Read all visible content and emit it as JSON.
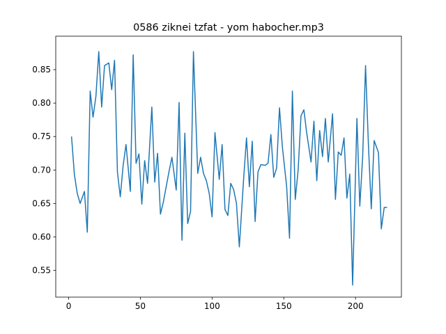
{
  "chart_data": {
    "type": "line",
    "title": "0586 ziknei tzfat - yom habocher.mp3",
    "x": [
      2,
      4,
      6,
      8,
      11,
      13,
      15,
      17,
      19,
      21,
      23,
      25,
      28,
      30,
      32,
      34,
      36,
      38,
      40,
      43,
      45,
      47,
      49,
      51,
      53,
      55,
      58,
      60,
      62,
      64,
      66,
      68,
      70,
      72,
      75,
      77,
      79,
      81,
      83,
      85,
      87,
      90,
      92,
      94,
      96,
      98,
      100,
      102,
      105,
      107,
      109,
      111,
      113,
      115,
      117,
      119,
      122,
      124,
      126,
      128,
      130,
      132,
      134,
      137,
      139,
      141,
      143,
      145,
      147,
      149,
      152,
      154,
      156,
      158,
      160,
      162,
      164,
      166,
      169,
      171,
      173,
      175,
      177,
      179,
      181,
      184,
      186,
      188,
      190,
      192,
      194,
      196,
      198,
      201,
      203,
      205,
      207,
      209,
      211,
      213,
      216,
      218,
      220,
      222
    ],
    "series": [
      {
        "color": "#1f77b4",
        "values": [
          0.75,
          0.693,
          0.665,
          0.65,
          0.668,
          0.607,
          0.818,
          0.779,
          0.81,
          0.877,
          0.794,
          0.856,
          0.86,
          0.82,
          0.864,
          0.697,
          0.66,
          0.707,
          0.738,
          0.668,
          0.872,
          0.71,
          0.724,
          0.649,
          0.714,
          0.68,
          0.794,
          0.682,
          0.725,
          0.634,
          0.652,
          0.675,
          0.698,
          0.719,
          0.67,
          0.801,
          0.595,
          0.755,
          0.62,
          0.638,
          0.877,
          0.695,
          0.719,
          0.695,
          0.684,
          0.665,
          0.63,
          0.756,
          0.686,
          0.738,
          0.641,
          0.632,
          0.68,
          0.671,
          0.65,
          0.585,
          0.687,
          0.748,
          0.675,
          0.743,
          0.623,
          0.697,
          0.708,
          0.707,
          0.71,
          0.753,
          0.689,
          0.703,
          0.793,
          0.735,
          0.675,
          0.598,
          0.818,
          0.656,
          0.7,
          0.781,
          0.79,
          0.755,
          0.712,
          0.773,
          0.684,
          0.759,
          0.72,
          0.777,
          0.712,
          0.784,
          0.656,
          0.727,
          0.722,
          0.748,
          0.658,
          0.694,
          0.528,
          0.777,
          0.646,
          0.72,
          0.856,
          0.738,
          0.642,
          0.744,
          0.726,
          0.612,
          0.644,
          0.644
        ]
      }
    ],
    "xlim": [
      -9,
      232
    ],
    "xticks": [
      0,
      50,
      100,
      150,
      200
    ],
    "ylim": [
      0.51,
      0.9
    ],
    "yticks": [
      0.55,
      {
        "value": 0.6,
        "label": "0.60"
      },
      0.65,
      {
        "value": 0.7,
        "label": "0.70"
      },
      0.75,
      {
        "value": 0.8,
        "label": "0.80"
      },
      0.85
    ]
  }
}
